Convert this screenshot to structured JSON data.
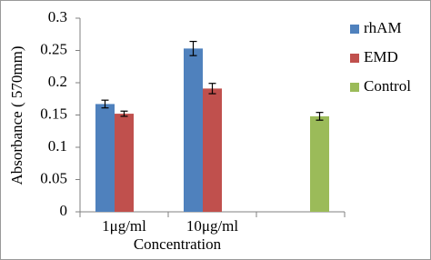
{
  "chart_data": {
    "type": "bar",
    "categories": [
      "1μg/ml",
      "10μg/ml",
      null
    ],
    "series": [
      {
        "name": "rhAM",
        "color": "#4f81bd",
        "values": [
          0.167,
          0.253,
          null
        ],
        "errors": [
          0.006,
          0.011,
          null
        ]
      },
      {
        "name": "EMD",
        "color": "#c0504d",
        "values": [
          0.152,
          0.191,
          null
        ],
        "errors": [
          0.004,
          0.008,
          null
        ]
      },
      {
        "name": "Control",
        "color": "#9bbb59",
        "values": [
          null,
          null,
          0.148
        ],
        "errors": [
          null,
          null,
          0.006
        ]
      }
    ],
    "ylim": [
      0,
      0.3
    ],
    "yticks": [
      0,
      0.05,
      0.1,
      0.15,
      0.2,
      0.25,
      0.3
    ],
    "xlabel": "Concentration",
    "ylabel": "Absorbance ( 570mm)",
    "legend": "right",
    "grid": false
  }
}
